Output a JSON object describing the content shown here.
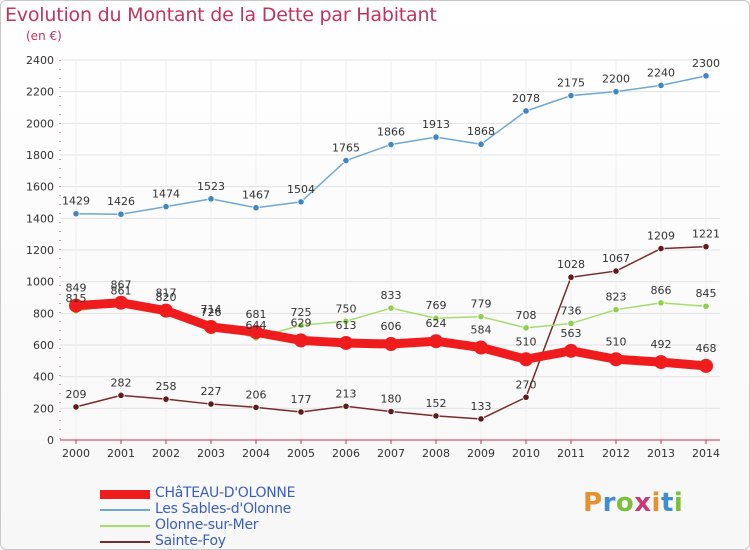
{
  "header": {
    "title": "Evolution du Montant de la Dette par Habitant",
    "subtitle": "(en €)"
  },
  "logo": {
    "text": "Proxiti",
    "colors": [
      "#e8902e",
      "#3f8fd0",
      "#7bbf3a",
      "#c83a78",
      "#e8902e",
      "#3f8fd0",
      "#7bbf3a"
    ]
  },
  "colors": {
    "title": "#c2345b",
    "axis": "#c2345b",
    "grid": "#e3e3e3",
    "label": "#333333",
    "legend_text": "#3b5fbf"
  },
  "chart_data": {
    "type": "line",
    "title": "Evolution du Montant de la Dette par Habitant",
    "unit": "(en €)",
    "x": [
      "2000",
      "2001",
      "2002",
      "2003",
      "2004",
      "2005",
      "2006",
      "2007",
      "2008",
      "2009",
      "2010",
      "2011",
      "2012",
      "2013",
      "2014"
    ],
    "ylim": [
      0,
      2400
    ],
    "yticks": [
      0,
      200,
      400,
      600,
      800,
      1000,
      1200,
      1400,
      1600,
      1800,
      2000,
      2200,
      2400
    ],
    "grid": true,
    "legend_position": "bottom-left",
    "series": [
      {
        "name": "Les Sables-d'Olonne",
        "color": "#6fa7d6",
        "marker": "#3f87c4",
        "values": [
          1429,
          1426,
          1474,
          1523,
          1467,
          1504,
          1765,
          1866,
          1913,
          1868,
          2078,
          2175,
          2200,
          2240,
          2300
        ]
      },
      {
        "name": "Sainte-Foy",
        "color": "#7a2a2a",
        "marker": "#5e1c1c",
        "values": [
          209,
          282,
          258,
          227,
          206,
          177,
          213,
          180,
          152,
          133,
          270,
          1028,
          1067,
          1209,
          1221
        ]
      },
      {
        "name": "Olonne-sur-Mer",
        "color": "#a6dc6c",
        "marker": "#8fcf4c",
        "values": [
          815,
          861,
          820,
          726,
          644,
          725,
          750,
          833,
          769,
          779,
          708,
          736,
          823,
          866,
          845
        ]
      },
      {
        "name": "CHâTEAU-D'OLONNE",
        "color": "#ee1c1c",
        "marker": "#ee1c1c",
        "values": [
          849,
          867,
          817,
          714,
          681,
          629,
          613,
          606,
          624,
          584,
          510,
          563,
          510,
          492,
          468
        ]
      }
    ]
  },
  "legend": {
    "items": [
      {
        "label": "CHâTEAU-D'OLONNE",
        "color": "#ee1c1c"
      },
      {
        "label": "Les Sables-d'Olonne",
        "color": "#6fa7d6"
      },
      {
        "label": "Olonne-sur-Mer",
        "color": "#a6dc6c"
      },
      {
        "label": "Sainte-Foy",
        "color": "#7a2a2a"
      }
    ]
  }
}
